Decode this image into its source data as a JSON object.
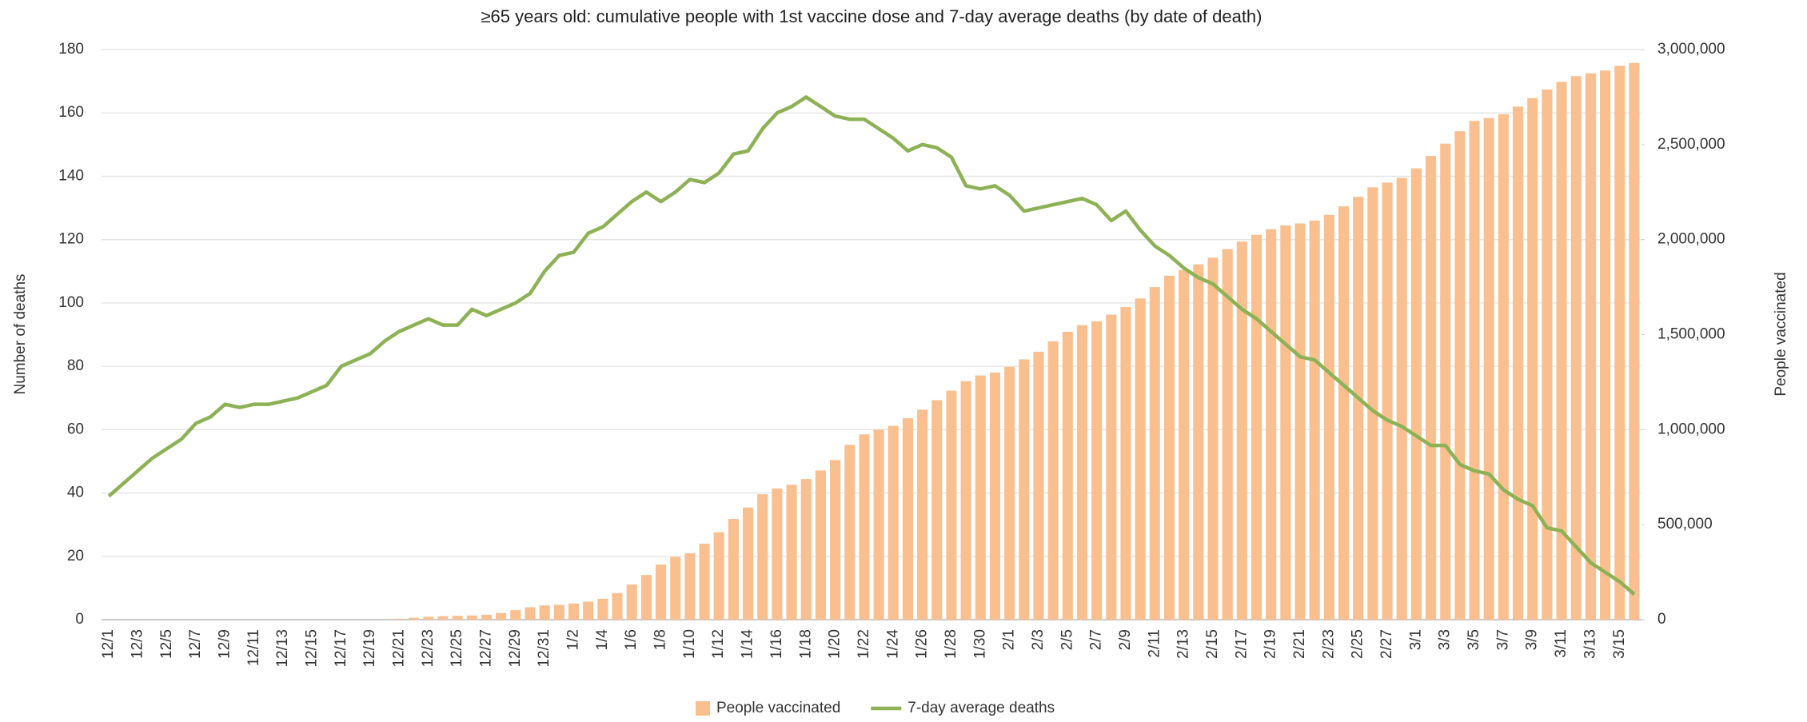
{
  "chart_data": {
    "type": "bar-line",
    "title": "≥65 years old: cumulative people with 1st vaccine dose and 7-day average deaths (by date of death)",
    "y_label": "Number of deaths",
    "y2_label": "People vaccinated",
    "categories": [
      "12/1",
      null,
      "12/3",
      null,
      "12/5",
      null,
      "12/7",
      null,
      "12/9",
      null,
      "12/11",
      null,
      "12/13",
      null,
      "12/15",
      null,
      "12/17",
      null,
      "12/19",
      null,
      "12/21",
      null,
      "12/23",
      null,
      "12/25",
      null,
      "12/27",
      null,
      "12/29",
      null,
      "12/31",
      null,
      "1/2",
      null,
      "1/4",
      null,
      "1/6",
      null,
      "1/8",
      null,
      "1/10",
      null,
      "1/12",
      null,
      "1/14",
      null,
      "1/16",
      null,
      "1/18",
      null,
      "1/20",
      null,
      "1/22",
      null,
      "1/24",
      null,
      "1/26",
      null,
      "1/28",
      null,
      "1/30",
      null,
      "2/1",
      null,
      "2/3",
      null,
      "2/5",
      null,
      "2/7",
      null,
      "2/9",
      null,
      "2/11",
      null,
      "2/13",
      null,
      "2/15",
      null,
      "2/17",
      null,
      "2/19",
      null,
      "2/21",
      null,
      "2/23",
      null,
      "2/25",
      null,
      "2/27",
      null,
      "3/1",
      null,
      "3/3",
      null,
      "3/5",
      null,
      "3/7",
      null,
      "3/9",
      null,
      "3/11",
      null,
      "3/13",
      null,
      "3/15",
      null
    ],
    "series": [
      {
        "name": "People vaccinated",
        "type": "bar",
        "axis": "y2",
        "color": "#f9bf8f",
        "values": [
          0,
          0,
          0,
          0,
          0,
          0,
          0,
          0,
          0,
          0,
          0,
          0,
          0,
          0,
          0,
          0,
          0,
          0,
          0,
          0,
          5000,
          10000,
          15000,
          18000,
          20000,
          22000,
          26000,
          35000,
          50000,
          65000,
          75000,
          78000,
          85000,
          95000,
          110000,
          140000,
          185000,
          235000,
          290000,
          330000,
          350000,
          400000,
          460000,
          530000,
          590000,
          660000,
          690000,
          710000,
          740000,
          785000,
          840000,
          920000,
          975000,
          1000000,
          1020000,
          1060000,
          1105000,
          1155000,
          1205000,
          1255000,
          1285000,
          1300000,
          1330000,
          1370000,
          1410000,
          1465000,
          1515000,
          1550000,
          1570000,
          1605000,
          1645000,
          1690000,
          1750000,
          1810000,
          1840000,
          1870000,
          1905000,
          1950000,
          1990000,
          2025000,
          2055000,
          2075000,
          2085000,
          2100000,
          2130000,
          2175000,
          2225000,
          2275000,
          2300000,
          2325000,
          2375000,
          2440000,
          2505000,
          2570000,
          2625000,
          2640000,
          2660000,
          2700000,
          2745000,
          2790000,
          2830000,
          2860000,
          2875000,
          2890000,
          2915000,
          2930000
        ]
      },
      {
        "name": "7-day average deaths",
        "type": "line",
        "axis": "y",
        "color": "#8db255",
        "values": [
          39,
          43,
          47,
          51,
          54,
          57,
          62,
          64,
          68,
          67,
          68,
          68,
          69,
          70,
          72,
          74,
          80,
          82,
          84,
          88,
          91,
          93,
          95,
          93,
          93,
          98,
          96,
          98,
          100,
          103,
          110,
          115,
          116,
          122,
          124,
          128,
          132,
          135,
          132,
          135,
          139,
          138,
          141,
          147,
          148,
          155,
          160,
          162,
          165,
          162,
          159,
          158,
          158,
          155,
          152,
          148,
          150,
          149,
          146,
          137,
          136,
          137,
          134,
          129,
          130,
          131,
          132,
          133,
          131,
          126,
          129,
          123,
          118,
          115,
          111,
          108,
          106,
          102,
          98,
          95,
          91,
          87,
          83,
          82,
          78,
          74,
          70,
          66,
          63,
          61,
          58,
          55,
          55,
          49,
          47,
          46,
          41,
          38,
          36,
          29,
          28,
          23,
          18,
          15,
          12,
          8
        ]
      }
    ],
    "ylim": [
      0,
      180
    ],
    "yticks": [
      0,
      20,
      40,
      60,
      80,
      100,
      120,
      140,
      160,
      180
    ],
    "y2lim": [
      0,
      3000000
    ],
    "y2ticks": [
      0,
      {
        "value": 500000,
        "label": "500,000"
      },
      {
        "value": 1000000,
        "label": "1,000,000"
      },
      {
        "value": 1500000,
        "label": "1,500,000"
      },
      {
        "value": 2000000,
        "label": "2,000,000"
      },
      {
        "value": 2500000,
        "label": "2,500,000"
      },
      {
        "value": 3000000,
        "label": "3,000,000"
      }
    ],
    "grid": true,
    "legend": "bottom"
  }
}
